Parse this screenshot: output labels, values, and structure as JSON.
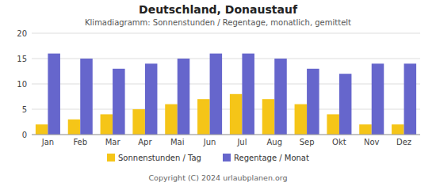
{
  "chart_data": {
    "type": "bar",
    "title": "Deutschland, Donaustauf",
    "subtitle": "Klimadiagramm: Sonnenstunden / Regentage, monatlich, gemittelt",
    "categories": [
      "Jan",
      "Feb",
      "Mar",
      "Apr",
      "Mai",
      "Jun",
      "Jul",
      "Aug",
      "Sep",
      "Okt",
      "Nov",
      "Dez"
    ],
    "series": [
      {
        "name": "Sonnenstunden / Tag",
        "color": "#f5c518",
        "values": [
          2,
          3,
          4,
          5,
          6,
          7,
          8,
          7,
          6,
          4,
          2,
          2
        ]
      },
      {
        "name": "Regentage / Monat",
        "color": "#6666cc",
        "values": [
          16,
          15,
          13,
          14,
          15,
          16,
          16,
          15,
          13,
          12,
          14,
          14
        ]
      }
    ],
    "ylim": [
      0,
      20
    ],
    "yticks": [
      0,
      5,
      10,
      15,
      20
    ],
    "grid": true,
    "legend": "bottom",
    "annotations": [
      "Copyright (C) 2024 urlaubplanen.org"
    ]
  }
}
